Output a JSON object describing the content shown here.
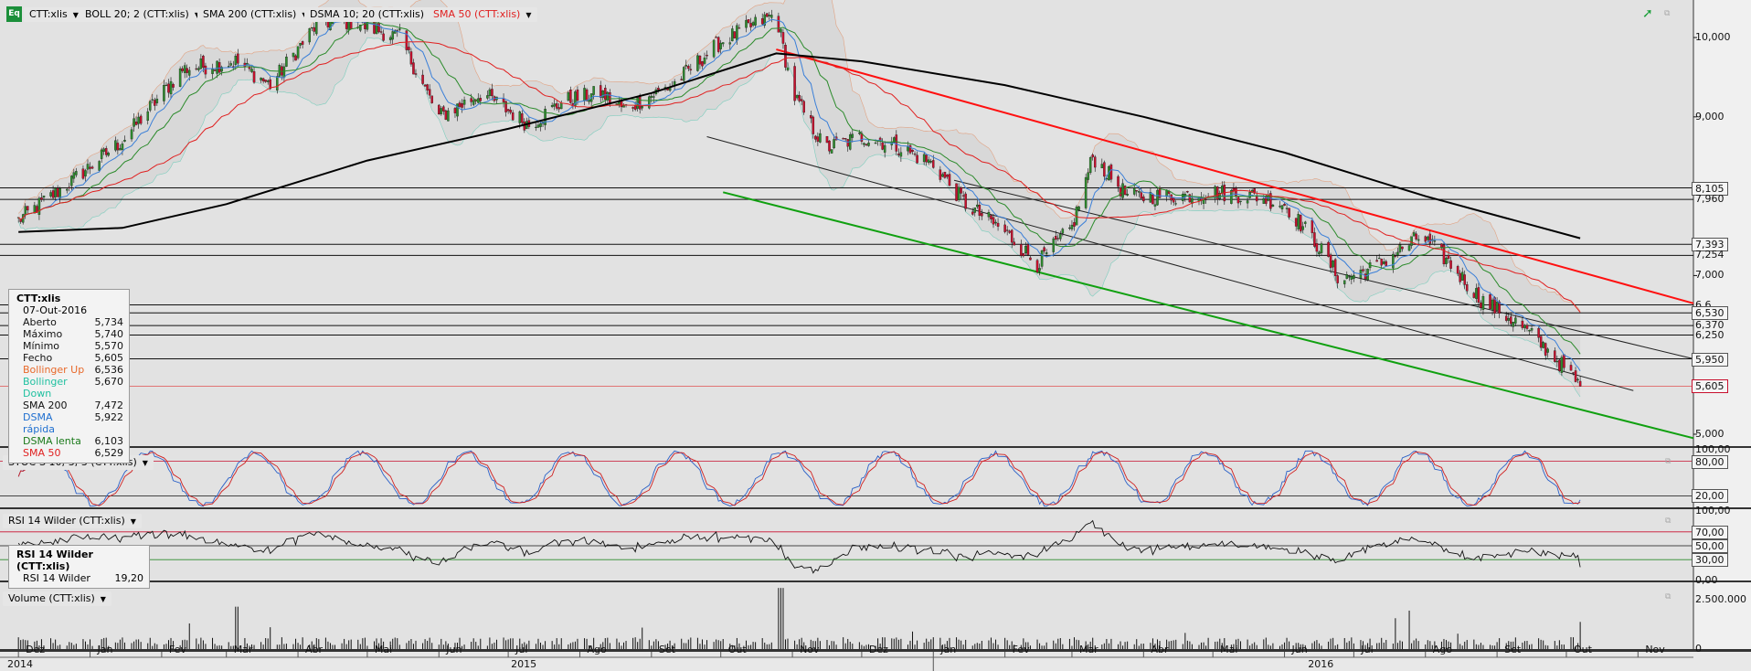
{
  "toolbar": {
    "logo": "Eq",
    "ticker": "CTT:xlis",
    "indicators": [
      "BOLL 20; 2 (CTT:xlis)",
      "SMA 200 (CTT:xlis)",
      "DSMA 10; 20 (CTT:xlis)",
      "SMA 50 (CTT:xlis)"
    ],
    "stoch_label": "STOC-S 10; 3; 3 (CTT:xlis)",
    "rsi_label": "RSI 14 Wilder (CTT:xlis)",
    "volume_label": "Volume (CTT:xlis)"
  },
  "colors": {
    "up": "#2e8b2e",
    "down": "#c8102e",
    "sma200": "#000000",
    "sma50": "#e02020",
    "dsma_fast": "#3a7fd8",
    "dsma_slow": "#2a8a2a",
    "boll_up": "#e8692a",
    "boll_down": "#20c0a0",
    "trend_red": "#ff1010",
    "trend_green": "#10a010"
  },
  "legend": {
    "title": "CTT:xlis",
    "date": "07-Out-2016",
    "rows": [
      {
        "label": "Aberto",
        "value": "5,734",
        "color": "#111111"
      },
      {
        "label": "Máximo",
        "value": "5,740",
        "color": "#111111"
      },
      {
        "label": "Mínimo",
        "value": "5,570",
        "color": "#111111"
      },
      {
        "label": "Fecho",
        "value": "5,605",
        "color": "#111111"
      },
      {
        "label": "Bollinger Up",
        "value": "6,536",
        "color": "#e8692a"
      },
      {
        "label": "Bollinger Down",
        "value": "5,670",
        "color": "#20c0a0"
      },
      {
        "label": "SMA 200",
        "value": "7,472",
        "color": "#111111"
      },
      {
        "label": "DSMA rápida",
        "value": "5,922",
        "color": "#1f6fd0"
      },
      {
        "label": "DSMA lenta",
        "value": "6,103",
        "color": "#1a7a1a"
      },
      {
        "label": "SMA 50",
        "value": "6,529",
        "color": "#e02020"
      }
    ]
  },
  "rsi_legend": {
    "title": "RSI 14 Wilder (CTT:xlis)",
    "label": "RSI 14 Wilder",
    "value": "19,20"
  },
  "chart_data": {
    "type": "candlestick",
    "price_axis": {
      "range": [
        4.85,
        10.45
      ],
      "ticks": [
        {
          "v": 10.0,
          "t": "10,000"
        },
        {
          "v": 9.0,
          "t": "9,000"
        },
        {
          "v": 7.0,
          "t": "7,000"
        },
        {
          "v": 5.0,
          "t": "5,000"
        }
      ],
      "levels": [
        {
          "v": 8.105,
          "t": "8,105",
          "boxed": true
        },
        {
          "v": 7.96,
          "t": "7,960",
          "boxed": false
        },
        {
          "v": 7.393,
          "t": "7,393",
          "boxed": true
        },
        {
          "v": 7.254,
          "t": "7,254",
          "boxed": false
        },
        {
          "v": 6.63,
          "t": "6,6..",
          "boxed": false
        },
        {
          "v": 6.53,
          "t": "6,530",
          "boxed": true
        },
        {
          "v": 6.37,
          "t": "6,370",
          "boxed": false
        },
        {
          "v": 6.25,
          "t": "6,250",
          "boxed": false
        },
        {
          "v": 5.95,
          "t": "5,950",
          "boxed": true
        },
        {
          "v": 5.605,
          "t": "5,605",
          "boxed": true,
          "red": true
        }
      ]
    },
    "anchors": [
      [
        "2014-12-01",
        7.7
      ],
      [
        "2014-12-20",
        8.1
      ],
      [
        "2015-01-15",
        8.7
      ],
      [
        "2015-02-10",
        9.6
      ],
      [
        "2015-03-05",
        9.7
      ],
      [
        "2015-03-20",
        9.4
      ],
      [
        "2015-04-10",
        10.2
      ],
      [
        "2015-04-25",
        10.2
      ],
      [
        "2015-05-15",
        10.0
      ],
      [
        "2015-06-01",
        9.0
      ],
      [
        "2015-06-20",
        9.3
      ],
      [
        "2015-07-10",
        8.9
      ],
      [
        "2015-07-25",
        9.2
      ],
      [
        "2015-08-10",
        9.3
      ],
      [
        "2015-08-20",
        9.1
      ],
      [
        "2015-09-10",
        9.4
      ],
      [
        "2015-10-01",
        9.95
      ],
      [
        "2015-10-25",
        10.3
      ],
      [
        "2015-11-01",
        9.3
      ],
      [
        "2015-11-15",
        8.6
      ],
      [
        "2015-12-01",
        8.75
      ],
      [
        "2015-12-15",
        8.65
      ],
      [
        "2016-01-01",
        8.4
      ],
      [
        "2016-01-15",
        7.9
      ],
      [
        "2016-02-01",
        7.55
      ],
      [
        "2016-02-15",
        7.15
      ],
      [
        "2016-03-01",
        7.6
      ],
      [
        "2016-03-10",
        8.5
      ],
      [
        "2016-03-25",
        8.0
      ],
      [
        "2016-04-15",
        8.0
      ],
      [
        "2016-05-01",
        8.05
      ],
      [
        "2016-05-20",
        8.0
      ],
      [
        "2016-06-01",
        7.9
      ],
      [
        "2016-06-15",
        7.4
      ],
      [
        "2016-06-25",
        6.95
      ],
      [
        "2016-07-10",
        7.1
      ],
      [
        "2016-07-30",
        7.5
      ],
      [
        "2016-08-10",
        7.2
      ],
      [
        "2016-08-25",
        6.7
      ],
      [
        "2016-09-10",
        6.4
      ],
      [
        "2016-09-25",
        6.0
      ],
      [
        "2016-10-07",
        5.605
      ]
    ],
    "sma200": [
      [
        "2014-12-01",
        7.55
      ],
      [
        "2015-01-15",
        7.6
      ],
      [
        "2015-03-01",
        7.9
      ],
      [
        "2015-05-01",
        8.45
      ],
      [
        "2015-07-01",
        8.85
      ],
      [
        "2015-09-01",
        9.3
      ],
      [
        "2015-10-25",
        9.8
      ],
      [
        "2015-12-01",
        9.7
      ],
      [
        "2016-02-01",
        9.4
      ],
      [
        "2016-04-01",
        9.0
      ],
      [
        "2016-06-01",
        8.55
      ],
      [
        "2016-08-01",
        8.0
      ],
      [
        "2016-10-07",
        7.47
      ]
    ],
    "trendlines": [
      {
        "color": "#ff1010",
        "p1": [
          "2015-10-25",
          9.85
        ],
        "p2": [
          "2016-11-25",
          6.65
        ],
        "w": 2
      },
      {
        "color": "#10a010",
        "p1": [
          "2015-10-02",
          8.05
        ],
        "p2": [
          "2016-11-25",
          4.95
        ],
        "w": 2
      },
      {
        "color": "#222222",
        "p1": [
          "2015-09-25",
          8.75
        ],
        "p2": [
          "2016-10-30",
          5.55
        ],
        "w": 1
      },
      {
        "color": "#222222",
        "p1": [
          "2016-01-10",
          8.2
        ],
        "p2": [
          "2016-11-25",
          5.95
        ],
        "w": 1
      }
    ],
    "osc_axes": {
      "stoch": [
        {
          "v": 100,
          "t": "100,00"
        },
        {
          "v": 80,
          "t": "80,00"
        },
        {
          "v": 20,
          "t": "20,00"
        }
      ],
      "rsi": [
        {
          "v": 100,
          "t": "100,00"
        },
        {
          "v": 70,
          "t": "70,00"
        },
        {
          "v": 50,
          "t": "50,00"
        },
        {
          "v": 30,
          "t": "30,00"
        },
        {
          "v": 0,
          "t": "0,00"
        }
      ],
      "volume": [
        {
          "v": 2500000,
          "t": "2.500.000"
        },
        {
          "v": 0,
          "t": "0"
        }
      ]
    },
    "date_axis": {
      "start": "2014-11-25",
      "end": "2016-11-25",
      "months": [
        [
          "Dez",
          "2014-12-01"
        ],
        [
          "Jan",
          "2015-01-01"
        ],
        [
          "Fev",
          "2015-02-01"
        ],
        [
          "Mar",
          "2015-03-01"
        ],
        [
          "Abr",
          "2015-04-01"
        ],
        [
          "Mai",
          "2015-05-01"
        ],
        [
          "Jun",
          "2015-06-01"
        ],
        [
          "Jul",
          "2015-07-01"
        ],
        [
          "Ago",
          "2015-08-01"
        ],
        [
          "Set",
          "2015-09-01"
        ],
        [
          "Out",
          "2015-10-01"
        ],
        [
          "Nov",
          "2015-11-01"
        ],
        [
          "Dez",
          "2015-12-01"
        ],
        [
          "Jan",
          "2016-01-01"
        ],
        [
          "Fev",
          "2016-02-01"
        ],
        [
          "Mar",
          "2016-03-01"
        ],
        [
          "Abr",
          "2016-04-01"
        ],
        [
          "Mai",
          "2016-05-01"
        ],
        [
          "Jun",
          "2016-06-01"
        ],
        [
          "Jul",
          "2016-07-01"
        ],
        [
          "Ago",
          "2016-08-01"
        ],
        [
          "Set",
          "2016-09-01"
        ],
        [
          "Out",
          "2016-10-01"
        ],
        [
          "Nov",
          "2016-11-01"
        ]
      ],
      "years": [
        [
          "2014",
          "2014-11-25"
        ],
        [
          "2015",
          "2015-07-01"
        ],
        [
          "2016",
          "2016-06-10"
        ]
      ]
    },
    "last_date": "2016-10-07"
  }
}
